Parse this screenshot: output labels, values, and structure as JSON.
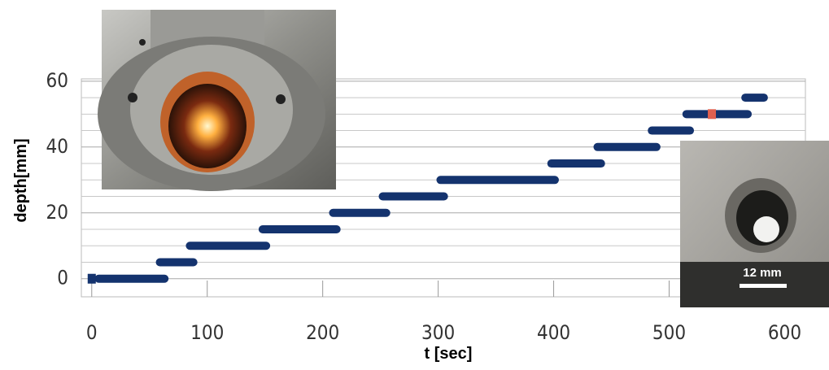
{
  "chart_data": {
    "type": "segment",
    "xlabel": "t [sec]",
    "ylabel": "depth[mm]",
    "xlim": [
      -9,
      618
    ],
    "ylim": [
      -5.5,
      60.7
    ],
    "xticks": [
      0,
      100,
      200,
      300,
      400,
      500,
      600
    ],
    "yticks": [
      0,
      20,
      40,
      60
    ],
    "yminorticks": [
      5,
      10,
      15,
      25,
      30,
      35,
      45,
      50,
      55
    ],
    "grid": true,
    "color": "#14336e",
    "x_start": [
      6,
      59,
      85,
      148,
      209,
      252,
      302,
      398,
      438,
      485,
      515,
      566
    ],
    "x_end": [
      63,
      88,
      151,
      212,
      255,
      305,
      401,
      441,
      489,
      518,
      568,
      582
    ],
    "values": [
      0,
      5,
      10,
      15,
      20,
      25,
      30,
      35,
      40,
      45,
      50,
      55
    ],
    "points": [
      {
        "x": [
          0
        ],
        "values": [
          0
        ],
        "color": "#14336e"
      },
      {
        "x": [
          537
        ],
        "values": [
          50
        ],
        "color": "#e0604f"
      }
    ],
    "inset_label": "12 mm"
  }
}
